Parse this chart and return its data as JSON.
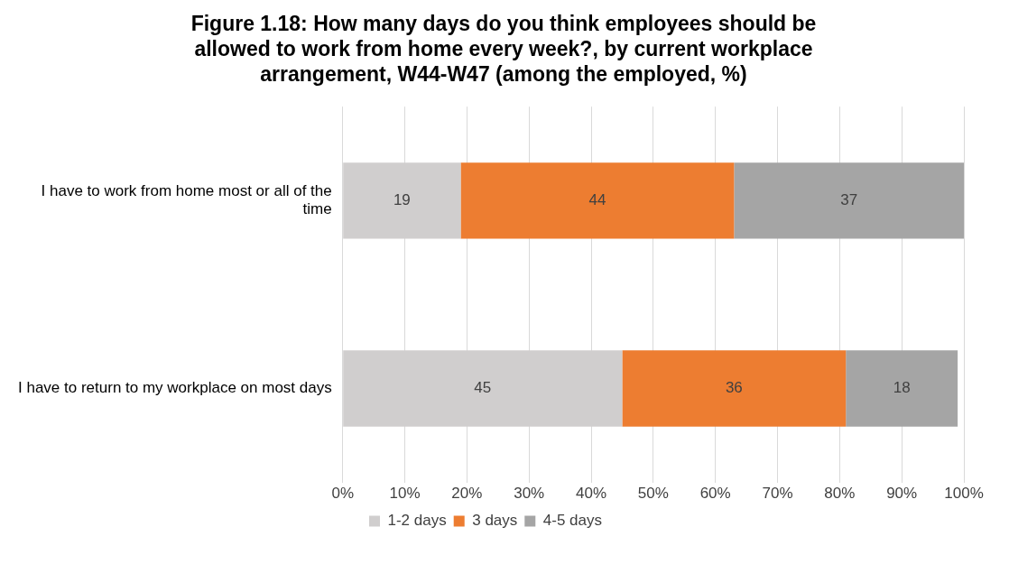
{
  "chart_data": {
    "type": "bar",
    "orientation": "horizontal",
    "stacked": true,
    "title": "Figure 1.18: How many days do you think employees should be allowed to work from home every week?, by current workplace arrangement, W44-W47 (among the employed, %)",
    "categories": [
      "I have to work from home most or all of the time",
      "I have to return to my workplace on most days"
    ],
    "series": [
      {
        "name": "1-2 days",
        "color": "#d0cece",
        "values": [
          19,
          45
        ]
      },
      {
        "name": "3 days",
        "color": "#ed7d31",
        "values": [
          44,
          36
        ]
      },
      {
        "name": "4-5 days",
        "color": "#a5a5a5",
        "values": [
          37,
          18
        ]
      }
    ],
    "xlim": [
      0,
      100
    ],
    "xticks": [
      {
        "value": 0,
        "label": "0%"
      },
      {
        "value": 10,
        "label": "10%"
      },
      {
        "value": 20,
        "label": "20%"
      },
      {
        "value": 30,
        "label": "30%"
      },
      {
        "value": 40,
        "label": "40%"
      },
      {
        "value": 50,
        "label": "50%"
      },
      {
        "value": 60,
        "label": "60%"
      },
      {
        "value": 70,
        "label": "70%"
      },
      {
        "value": 80,
        "label": "80%"
      },
      {
        "value": 90,
        "label": "90%"
      },
      {
        "value": 100,
        "label": "100%"
      }
    ],
    "grid": "x",
    "legend": "bottom",
    "data_labels": true
  }
}
